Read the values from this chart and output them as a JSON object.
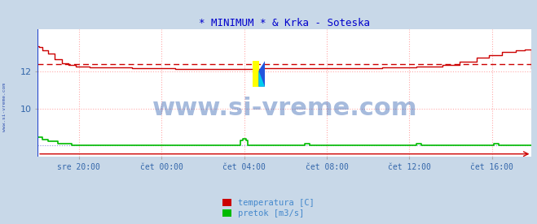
{
  "title": "* MINIMUM * & Krka - Soteska",
  "title_color": "#0000cc",
  "outer_bg_color": "#c8d8e8",
  "plot_bg_color": "#ffffff",
  "yticks": [
    10,
    12
  ],
  "ylim": [
    7.5,
    14.2
  ],
  "xlim": [
    0,
    287
  ],
  "xtick_positions": [
    24,
    72,
    120,
    168,
    216,
    264
  ],
  "xtick_labels": [
    "sre 20:00",
    "čet 00:00",
    "čet 04:00",
    "čet 08:00",
    "čet 12:00",
    "čet 16:00"
  ],
  "grid_color": "#ffcccc",
  "vgrid_color": "#ddaaaa",
  "hline_value": 12.35,
  "hline_color": "#cc0000",
  "hline_style": "--",
  "temp_color": "#cc0000",
  "flow_color": "#00bb00",
  "blue_ref_color": "#4444cc",
  "watermark_text": "www.si-vreme.com",
  "watermark_color": "#2255aa",
  "watermark_alpha": 0.4,
  "watermark_fontsize": 22,
  "sidebar_text": "www.si-vreme.com",
  "sidebar_color": "#2244aa",
  "legend_items": [
    "temperatura [C]",
    "pretok [m3/s]"
  ],
  "legend_colors": [
    "#cc0000",
    "#00bb00"
  ],
  "legend_text_color": "#4488cc"
}
